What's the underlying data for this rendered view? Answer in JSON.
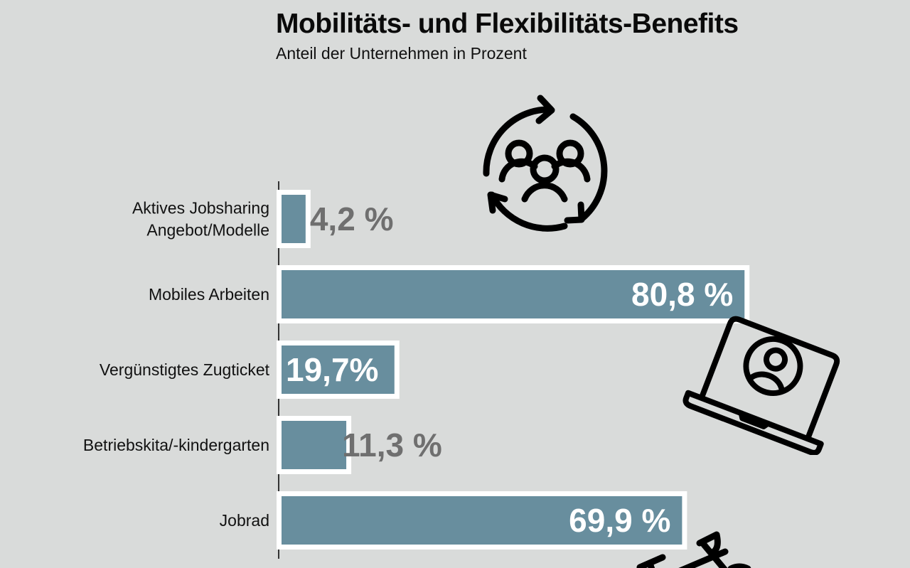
{
  "header": {
    "title": "Mobilitäts- und Flexibilitäts-Benefits",
    "subtitle": "Anteil der Unternehmen in Prozent"
  },
  "colors": {
    "background": "#d9dbda",
    "bar_fill": "#688e9e",
    "bar_outline": "#ffffff",
    "label_outside": "#6f6f6f",
    "label_inside": "#ffffff"
  },
  "icons": [
    "people-cycle-icon",
    "laptop-user-icon",
    "bicycle-icon"
  ],
  "chart_data": {
    "type": "bar",
    "orientation": "horizontal",
    "title": "Mobilitäts- und Flexibilitäts-Benefits",
    "subtitle": "Anteil der Unternehmen in Prozent",
    "xlabel": "",
    "ylabel": "",
    "unit": "%",
    "xlim": [
      0,
      100
    ],
    "grid": false,
    "legend": "none",
    "categories": [
      [
        "Aktives Jobsharing",
        "Angebot/Modelle"
      ],
      [
        "Mobiles Arbeiten"
      ],
      [
        "Vergünstigtes Zugticket"
      ],
      [
        "Betriebskita/-kindergarten"
      ],
      [
        "Jobrad"
      ]
    ],
    "values": [
      4.2,
      80.8,
      19.7,
      11.3,
      69.9
    ],
    "value_labels": [
      "4,2 %",
      "80,8 %",
      "19,7%",
      "11,3 %",
      "69,9 %"
    ],
    "label_inside": [
      false,
      true,
      true,
      false,
      true
    ]
  }
}
